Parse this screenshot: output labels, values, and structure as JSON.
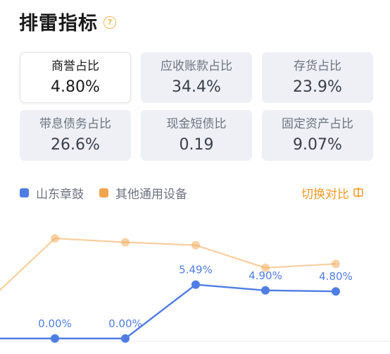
{
  "header": {
    "title": "排雷指标",
    "help_icon": "question-circle-icon",
    "help_glyph": "?"
  },
  "metrics": [
    {
      "label": "商誉占比",
      "value": "4.80%",
      "active": true
    },
    {
      "label": "应收账款占比",
      "value": "34.4%",
      "active": false
    },
    {
      "label": "存货占比",
      "value": "23.9%",
      "active": false
    },
    {
      "label": "带息债务占比",
      "value": "26.6%",
      "active": false
    },
    {
      "label": "现金短债比",
      "value": "0.19",
      "active": false
    },
    {
      "label": "固定资产占比",
      "value": "9.07%",
      "active": false
    }
  ],
  "legend": {
    "company": {
      "name": "山东章鼓",
      "color": "#4f7de3"
    },
    "industry": {
      "name": "其他通用设备",
      "color": "#f0a550"
    },
    "switch_label": "切换对比",
    "switch_icon": "switch-compare-icon"
  },
  "chart_data": {
    "type": "line",
    "series": [
      {
        "name": "山东章鼓",
        "color": "#4f7de3",
        "values": [
          0.0,
          0.0,
          0.0,
          5.49,
          4.9,
          4.8
        ],
        "labels": [
          "0.00%",
          "0.00%",
          "0.00%",
          "5.49%",
          "4.90%",
          "4.80%"
        ]
      },
      {
        "name": "其他通用设备",
        "color": "#f0a550",
        "values": [
          null,
          10.2,
          9.8,
          9.5,
          7.2,
          7.6
        ]
      }
    ],
    "grid": false
  }
}
